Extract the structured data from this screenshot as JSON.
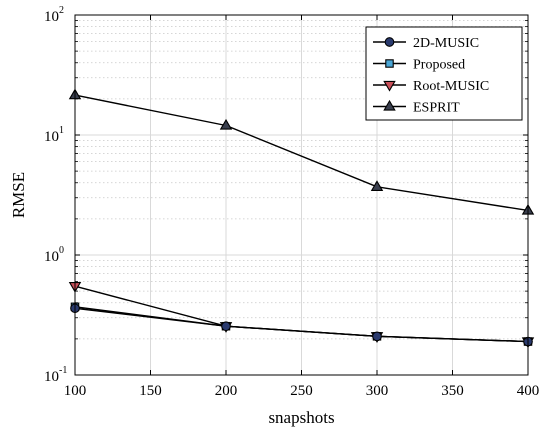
{
  "chart_data": {
    "type": "line",
    "xlabel": "snapshots",
    "ylabel": "RMSE",
    "x": [
      100,
      200,
      300,
      400
    ],
    "xlim": [
      100,
      400
    ],
    "xticks": [
      100,
      150,
      200,
      250,
      300,
      350,
      400
    ],
    "ylim": [
      0.1,
      100
    ],
    "yscale": "log",
    "yticks": [
      {
        "value": 0.1,
        "base": "10",
        "exp": "-1"
      },
      {
        "value": 1,
        "base": "10",
        "exp": "0"
      },
      {
        "value": 10,
        "base": "10",
        "exp": "1"
      },
      {
        "value": 100,
        "base": "10",
        "exp": "2"
      }
    ],
    "grid": true,
    "legend_position": "top-right",
    "series": [
      {
        "name": "2D-MUSIC",
        "values": [
          0.36,
          0.255,
          0.21,
          0.19
        ],
        "marker": "circle",
        "color": "#2a3a6e"
      },
      {
        "name": "Proposed",
        "values": [
          0.37,
          0.255,
          0.21,
          0.19
        ],
        "marker": "square",
        "color": "#4aa6d6"
      },
      {
        "name": "Root-MUSIC",
        "values": [
          0.55,
          0.255,
          0.21,
          0.19
        ],
        "marker": "triangle-down",
        "color": "#c8505a"
      },
      {
        "name": "ESPRIT",
        "values": [
          21.5,
          12.0,
          3.7,
          2.35
        ],
        "marker": "triangle-up",
        "color": "#3a3f4e"
      }
    ]
  }
}
